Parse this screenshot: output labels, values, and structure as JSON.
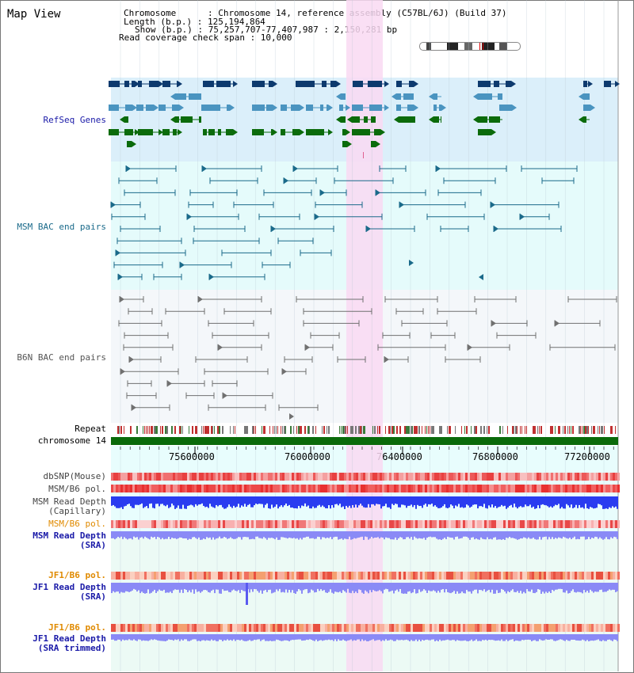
{
  "title": "Map View",
  "info": {
    "chromosome": "Chromosome      : Chromosome 14, reference assembly (C57BL/6J) (Build 37)",
    "length": "Length (b.p.) : 125,194,864",
    "show": "Show (b.p.) : 75,257,707-77,407,987 : 2,150,281 bp",
    "span": "Read coverage check span : 10,000"
  },
  "tracks": {
    "refseq": "RefSeq Genes",
    "msm_bac": "MSM BAC end pairs",
    "b6n_bac": "B6N BAC end pairs",
    "repeat": "Repeat",
    "chromosome": "chromosome 14",
    "dbsnp": "dbSNP(Mouse)",
    "msm_b6_pol_1": "MSM/B6 pol.",
    "msm_depth_cap_1": "MSM Read Depth",
    "msm_depth_cap_2": "(Capillary)",
    "msm_b6_pol_2": "MSM/B6 pol.",
    "msm_depth_sra_1": "MSM Read Depth",
    "msm_depth_sra_2": "(SRA)",
    "jf1_b6_pol_1": "JF1/B6 pol.",
    "jf1_depth_sra_1": "JF1 Read Depth",
    "jf1_depth_sra_2": "(SRA)",
    "jf1_b6_pol_2": "JF1/B6 pol.",
    "jf1_depth_trim_1": "JF1 Read Depth",
    "jf1_depth_trim_2": "(SRA trimmed)"
  },
  "axis": {
    "ticks": [
      "75600000",
      "76000000",
      "76400000",
      "76800000",
      "77200000"
    ]
  },
  "colors": {
    "refseq_bg": "#dbeffa",
    "msm_bg": "#e5fbfb",
    "b6n_bg": "#f4f7fa",
    "highlight": "#f9d9f2",
    "gene_dark": "#0d3a6e",
    "gene_mid": "#4a94c0",
    "gene_green": "#0b6b0b",
    "msm_bac": "#1a6a8a",
    "b6n_bac": "#707070",
    "chrom_bar": "#0a6a0a",
    "depth_blue": "#2a3cf0",
    "depth_light": "#8a8af6",
    "label_blue": "#1a1aa8",
    "label_teal": "#1a6a8a",
    "label_gray": "#444444",
    "label_orange": "#e08a00"
  }
}
